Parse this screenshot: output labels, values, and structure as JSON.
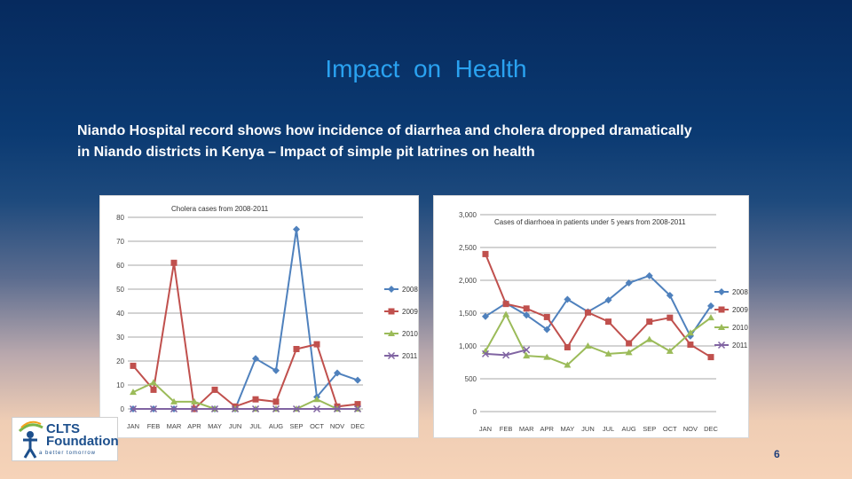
{
  "slide": {
    "title": "Impact  on  Health",
    "subtitle_line1": "Niando Hospital record shows how incidence of diarrhea and cholera dropped dramatically",
    "subtitle_line2": "in Niando districts in Kenya – Impact of simple pit latrines on health",
    "page_number": "6",
    "logo": {
      "name": "CLTS Foundation",
      "line1": "CLTS",
      "line2": "Foundation",
      "tagline": "a better tomorrow"
    }
  },
  "chart_data": [
    {
      "type": "line",
      "title": "Cholera cases from 2008-2011",
      "categories": [
        "JAN",
        "FEB",
        "MAR",
        "APR",
        "MAY",
        "JUN",
        "JUL",
        "AUG",
        "SEP",
        "OCT",
        "NOV",
        "DEC"
      ],
      "ylim": [
        0,
        80
      ],
      "yticks": [
        0,
        10,
        20,
        30,
        40,
        50,
        60,
        70,
        80
      ],
      "ytick_labels": [
        "0",
        "10",
        "20",
        "30",
        "40",
        "50",
        "60",
        "70",
        "80"
      ],
      "grid": true,
      "legend": "right",
      "series": [
        {
          "name": "2008",
          "color": "#4f81bd",
          "marker": "diamond",
          "values": [
            0,
            0,
            0,
            0,
            0,
            0,
            21,
            16,
            75,
            5,
            15,
            12
          ]
        },
        {
          "name": "2009",
          "color": "#c0504d",
          "marker": "square",
          "values": [
            18,
            8,
            61,
            0,
            8,
            1,
            4,
            3,
            25,
            27,
            1,
            2
          ]
        },
        {
          "name": "2010",
          "color": "#9bbb59",
          "marker": "triangle",
          "values": [
            7,
            11,
            3,
            3,
            0,
            0,
            0,
            0,
            0,
            4,
            0,
            0
          ]
        },
        {
          "name": "2011",
          "color": "#8064a2",
          "marker": "x",
          "values": [
            0,
            0,
            0,
            0,
            0,
            0,
            0,
            0,
            0,
            0,
            0,
            0
          ]
        }
      ]
    },
    {
      "type": "line",
      "title": "Cases of diarrhoea in patients under 5 years from 2008-2011",
      "categories": [
        "JAN",
        "FEB",
        "MAR",
        "APR",
        "MAY",
        "JUN",
        "JUL",
        "AUG",
        "SEP",
        "OCT",
        "NOV",
        "DEC"
      ],
      "ylim": [
        0,
        3000
      ],
      "yticks": [
        0,
        500,
        1000,
        1500,
        2000,
        2500,
        3000
      ],
      "ytick_labels": [
        "0",
        "500",
        "1,000",
        "1,500",
        "2,000",
        "2,500",
        "3,000"
      ],
      "grid": true,
      "legend": "right",
      "series": [
        {
          "name": "2008",
          "color": "#4f81bd",
          "marker": "diamond",
          "values": [
            1450,
            1650,
            1470,
            1250,
            1710,
            1520,
            1700,
            1960,
            2070,
            1770,
            1150,
            1610
          ]
        },
        {
          "name": "2009",
          "color": "#c0504d",
          "marker": "square",
          "values": [
            2400,
            1640,
            1570,
            1440,
            980,
            1510,
            1370,
            1040,
            1370,
            1430,
            1020,
            830
          ]
        },
        {
          "name": "2010",
          "color": "#9bbb59",
          "marker": "triangle",
          "values": [
            920,
            1480,
            850,
            830,
            710,
            1000,
            880,
            900,
            1100,
            920,
            1200,
            1430
          ]
        },
        {
          "name": "2011",
          "color": "#8064a2",
          "marker": "x",
          "values": [
            880,
            860,
            940,
            null,
            null,
            null,
            null,
            null,
            null,
            null,
            null,
            null
          ]
        }
      ]
    }
  ]
}
